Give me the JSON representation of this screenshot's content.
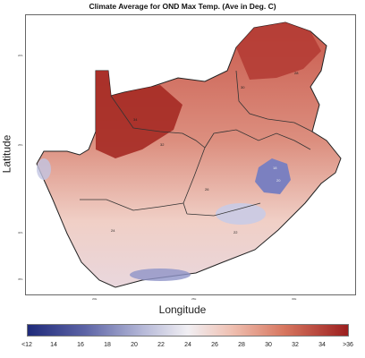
{
  "title": "Climate Average for OND Max Temp. (Ave in Deg. C)",
  "axes": {
    "xlabel": "Longitude",
    "ylabel": "Latitude",
    "xticks": [
      "20E",
      "25E",
      "30E"
    ],
    "yticks": [
      "20S",
      "25S",
      "30S",
      "35S"
    ]
  },
  "contour_labels": [
    "28",
    "30",
    "32",
    "34",
    "26",
    "24",
    "22",
    "20",
    "18"
  ],
  "legend": {
    "ticks": [
      "<12",
      "14",
      "16",
      "18",
      "20",
      "22",
      "24",
      "26",
      "28",
      "30",
      "32",
      "34",
      ">36"
    ],
    "low_color": "#1f2a7a",
    "mid_color": "#f1eff3",
    "high_color": "#9c1f1f"
  }
}
